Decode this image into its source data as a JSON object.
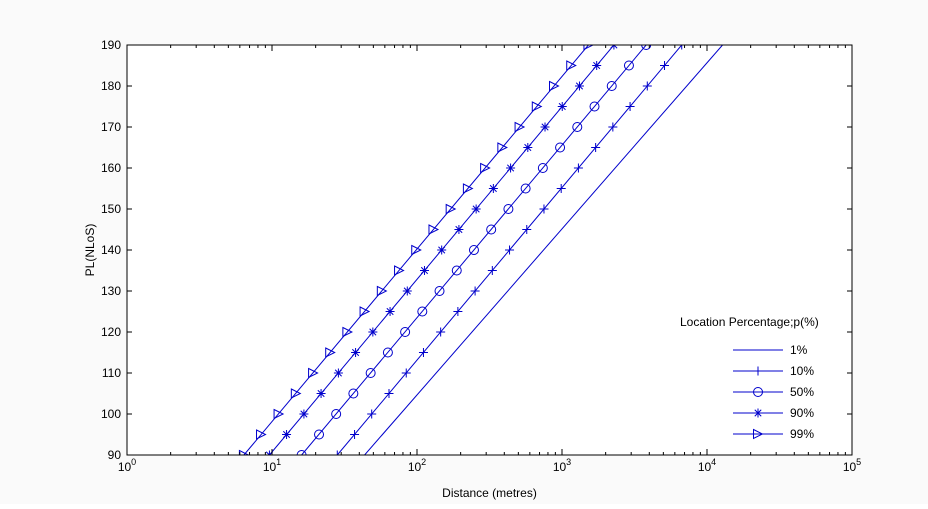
{
  "chart_data": {
    "type": "line",
    "xlabel": "Distance (metres)",
    "ylabel": "PL(NLoS)",
    "xscale": "log",
    "xlim": [
      1,
      100000
    ],
    "ylim": [
      90,
      190
    ],
    "x_ticks": [
      {
        "value": 1,
        "base": "10",
        "exp": "0"
      },
      {
        "value": 10,
        "base": "10",
        "exp": "1"
      },
      {
        "value": 100,
        "base": "10",
        "exp": "2"
      },
      {
        "value": 1000,
        "base": "10",
        "exp": "3"
      },
      {
        "value": 10000,
        "base": "10",
        "exp": "4"
      },
      {
        "value": 100000,
        "base": "10",
        "exp": "5"
      }
    ],
    "y_ticks": [
      90,
      100,
      110,
      120,
      130,
      140,
      150,
      160,
      170,
      180,
      190
    ],
    "grid": false,
    "legend": {
      "title": "Location Percentage;p(%)",
      "placement": "bottom-right"
    },
    "line_color": "#0000cc",
    "series": [
      {
        "name": "1%",
        "marker": "none",
        "x": [
          43.5,
          12800
        ]
      },
      {
        "name": "10%",
        "marker": "plus",
        "x": [
          28.2,
          37.1,
          48.7,
          64.1,
          84.3,
          110.8,
          145.6,
          191.4,
          251.6,
          330.7,
          434.7,
          571.4,
          751.1,
          987.3,
          1297.8,
          1706.0,
          2242.3,
          2947.7,
          3874.6,
          5093.1,
          6694.9,
          8800.1
        ]
      },
      {
        "name": "50%",
        "marker": "circle",
        "x": [
          16.0,
          21.1,
          27.7,
          36.4,
          47.9,
          63.0,
          82.8,
          108.8,
          143.0,
          188.0,
          247.1,
          324.8,
          427.0,
          561.2,
          737.8,
          969.8,
          1274.8,
          1675.7,
          2202.7,
          2895.4,
          3806.0,
          5003.0
        ]
      },
      {
        "name": "90%",
        "marker": "asterisk",
        "x": [
          9.6,
          12.6,
          16.6,
          21.8,
          28.7,
          37.7,
          49.6,
          65.2,
          85.7,
          112.6,
          148.0,
          194.6,
          255.8,
          336.2,
          442.0,
          581.0,
          763.7,
          1003.9,
          1319.6,
          1734.6,
          2280.1,
          2997.2
        ]
      },
      {
        "name": "99%",
        "marker": "triangle",
        "x": [
          6.4,
          8.4,
          11.1,
          14.6,
          19.2,
          25.2,
          33.1,
          43.5,
          57.2,
          75.2,
          98.8,
          129.9,
          170.7,
          224.4,
          295.0,
          387.8,
          509.8,
          670.1,
          880.9,
          1157.9,
          1522.0,
          2000.7
        ]
      }
    ],
    "y_values": [
      90,
      95,
      100,
      105,
      110,
      115,
      120,
      125,
      130,
      135,
      140,
      145,
      150,
      155,
      160,
      165,
      170,
      175,
      180,
      185,
      190,
      195
    ]
  }
}
